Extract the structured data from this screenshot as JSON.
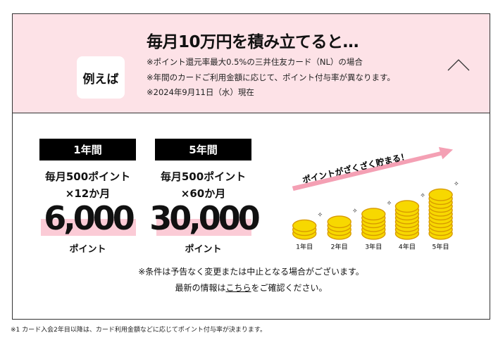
{
  "header": {
    "badge": "例えば",
    "title": "毎月10万円を積み立てると…",
    "notes": [
      "※ポイント還元率最大0.5%の三井住友カード（NL）の場合",
      "※年間のカードご利用金額に応じて、ポイント付与率が異なります。",
      "※2024年9月11日（水）現在"
    ],
    "toggle_icon": "chevron-up-icon"
  },
  "examples": [
    {
      "label": "1年間",
      "line1": "毎月500ポイント",
      "line2": "×12か月",
      "amount": "6,000",
      "unit": "ポイント"
    },
    {
      "label": "5年間",
      "line1": "毎月500ポイント",
      "line2": "×60か月",
      "amount": "30,000",
      "unit": "ポイント"
    }
  ],
  "illustration": {
    "caption": "ポイントがざくざく貯まる！",
    "years": [
      "1年目",
      "2年目",
      "3年目",
      "4年目",
      "5年目"
    ],
    "colors": {
      "coin": "#f7d800",
      "coin_edge": "#d89a00",
      "arrow": "#f4a0b4"
    }
  },
  "disclaimer": {
    "line1": "※条件は予告なく変更または中止となる場合がございます。",
    "line2_pre": "最新の情報は",
    "link": "こちら",
    "line2_post": "をご確認ください。"
  },
  "footnote": "※1 カード入会2年目以降は、カード利用金額などに応じてポイント付与率が決まります。"
}
